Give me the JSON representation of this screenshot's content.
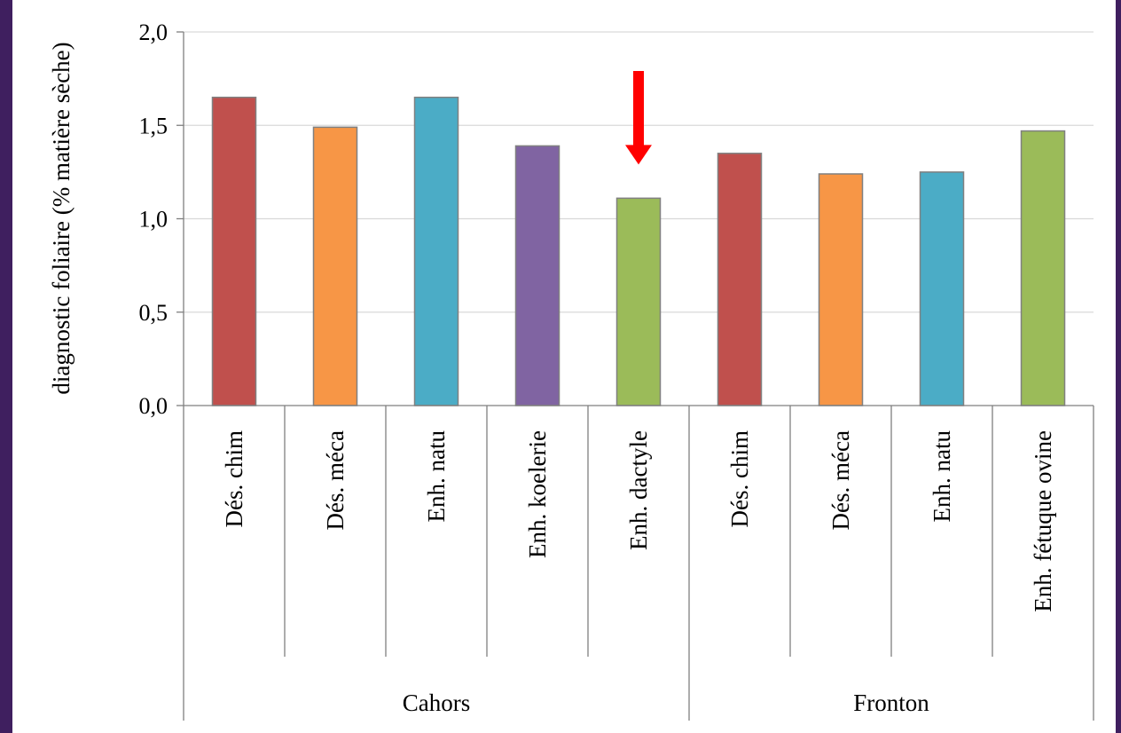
{
  "chart_data": {
    "type": "bar",
    "title": "",
    "ylabel": "diagnostic foliaire (% matière sèche)",
    "ylim": [
      0,
      2
    ],
    "yticks": [
      0,
      0.5,
      1,
      1.5,
      2
    ],
    "ytick_labels": [
      "0,0",
      "0,5",
      "1,0",
      "1,5",
      "2,0"
    ],
    "grid": true,
    "groups": [
      {
        "name": "Cahors",
        "categories": [
          "Dés. chim",
          "Dés. méca",
          "Enh. natu",
          "Enh. koelerie",
          "Enh. dactyle"
        ],
        "values": [
          1.65,
          1.49,
          1.65,
          1.39,
          1.11
        ],
        "colors": [
          "#c0504d",
          "#f79646",
          "#4bacc6",
          "#8064a2",
          "#9bbb59"
        ]
      },
      {
        "name": "Fronton",
        "categories": [
          "Dés. chim",
          "Dés. méca",
          "Enh. natu",
          "Enh. fétuque ovine"
        ],
        "values": [
          1.35,
          1.24,
          1.25,
          1.47
        ],
        "colors": [
          "#c0504d",
          "#f79646",
          "#4bacc6",
          "#9bbb59"
        ]
      }
    ],
    "annotation": {
      "type": "arrow",
      "color": "#ff0000",
      "target_category": "Enh. dactyle",
      "target_group": "Cahors"
    }
  }
}
